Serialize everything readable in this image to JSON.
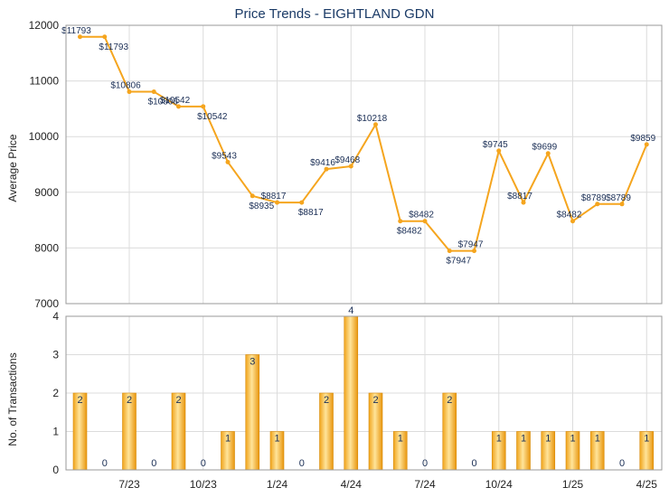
{
  "chart_data": [
    {
      "type": "line",
      "title": "Price Trends - EIGHTLAND GDN",
      "ylabel": "Average Price",
      "ylim": [
        7000,
        12000
      ],
      "yticks": [
        7000,
        8000,
        9000,
        10000,
        11000,
        12000
      ],
      "grid": true,
      "color": "#f5a51e",
      "points": [
        {
          "label": "$11793",
          "value": 11793
        },
        {
          "label": "$11793",
          "value": 11793
        },
        {
          "label": "$10806",
          "value": 10806
        },
        {
          "label": "$10806",
          "value": 10806
        },
        {
          "label": "$10542",
          "value": 10542
        },
        {
          "label": "$10542",
          "value": 10542
        },
        {
          "label": "$9543",
          "value": 9543
        },
        {
          "label": "$8935",
          "value": 8935
        },
        {
          "label": "$8817",
          "value": 8817
        },
        {
          "label": "$8817",
          "value": 8817
        },
        {
          "label": "$9416",
          "value": 9416
        },
        {
          "label": "$9468",
          "value": 9468
        },
        {
          "label": "$10218",
          "value": 10218
        },
        {
          "label": "$8482",
          "value": 8482
        },
        {
          "label": "$8482",
          "value": 8482
        },
        {
          "label": "$7947",
          "value": 7947
        },
        {
          "label": "$7947",
          "value": 7947
        },
        {
          "label": "$9745",
          "value": 9745
        },
        {
          "label": "$8817",
          "value": 8817
        },
        {
          "label": "$9699",
          "value": 9699
        },
        {
          "label": "$8482",
          "value": 8482
        },
        {
          "label": "$8789",
          "value": 8789
        },
        {
          "label": "$8789",
          "value": 8789
        },
        {
          "label": "$9859",
          "value": 9859
        }
      ]
    },
    {
      "type": "bar",
      "ylabel": "No. of Transactions",
      "ylim": [
        0,
        4
      ],
      "yticks": [
        0,
        1,
        2,
        3,
        4
      ],
      "grid": true,
      "color": "#f5a51e",
      "values": [
        2,
        0,
        2,
        0,
        2,
        0,
        1,
        3,
        1,
        0,
        2,
        4,
        2,
        1,
        0,
        2,
        0,
        1,
        1,
        1,
        1,
        1,
        0,
        1
      ],
      "xticks": [
        {
          "label": "7/23",
          "index": 2
        },
        {
          "label": "10/23",
          "index": 5
        },
        {
          "label": "1/24",
          "index": 8
        },
        {
          "label": "4/24",
          "index": 11
        },
        {
          "label": "7/24",
          "index": 14
        },
        {
          "label": "10/24",
          "index": 17
        },
        {
          "label": "1/25",
          "index": 20
        },
        {
          "label": "4/25",
          "index": 23
        }
      ]
    }
  ]
}
